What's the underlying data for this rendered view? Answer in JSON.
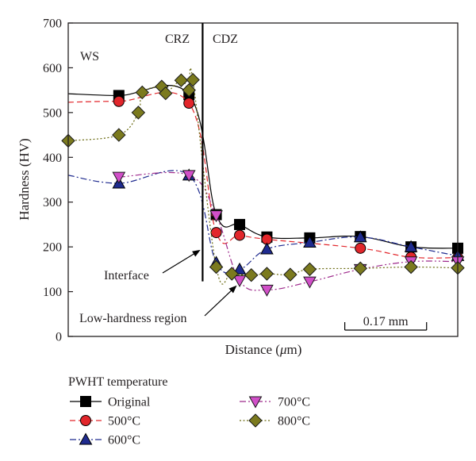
{
  "chart_data": {
    "type": "line",
    "xlabel_pre": "Distance (",
    "xlabel_mu": "μ",
    "xlabel_post": "m)",
    "ylabel": "Hardness (HV)",
    "ylim": [
      0,
      700
    ],
    "yticks": [
      0,
      100,
      200,
      300,
      400,
      500,
      600,
      700
    ],
    "xlim": [
      0,
      1
    ],
    "grid": false,
    "interface_x": 0.345,
    "region_labels": [
      "WS",
      "CRZ",
      "CDZ"
    ],
    "annotations": [
      {
        "text": "Interface",
        "target": [
          0.34,
          195
        ]
      },
      {
        "text": "Low-hardness region",
        "target": [
          0.44,
          115
        ]
      }
    ],
    "scale_bar": {
      "label": "0.17 mm",
      "x_start": 0.71,
      "x_end": 0.92
    },
    "legend_title": "PWHT temperature",
    "legend_position": "bottom",
    "series": [
      {
        "name": "Original",
        "color": "#000000",
        "marker": "square",
        "line": "solid",
        "fill": "#000000",
        "x": [
          0.0,
          0.13,
          0.31,
          0.38,
          0.44,
          0.51,
          0.62,
          0.75,
          0.88,
          1.0
        ],
        "y": [
          542,
          538,
          540,
          272,
          250,
          222,
          220,
          223,
          200,
          197
        ],
        "markers_at": [
          1,
          2,
          3,
          4,
          5,
          6,
          7,
          8,
          9
        ]
      },
      {
        "name": "500°C",
        "color": "#e2262b",
        "marker": "circle",
        "line": "dashed",
        "fill": "#e2262b",
        "x": [
          0.0,
          0.13,
          0.31,
          0.38,
          0.44,
          0.51,
          0.75,
          0.88,
          1.0
        ],
        "y": [
          523,
          525,
          521,
          232,
          226,
          217,
          197,
          177,
          176
        ],
        "markers_at": [
          1,
          2,
          3,
          4,
          5,
          6,
          7,
          8
        ]
      },
      {
        "name": "600°C",
        "color": "#1f2b8f",
        "marker": "triangle-up",
        "line": "dashdot",
        "fill": "#1f2b8f",
        "x": [
          0.0,
          0.13,
          0.31,
          0.38,
          0.44,
          0.51,
          0.62,
          0.75,
          0.88,
          1.0
        ],
        "y": [
          360,
          342,
          360,
          165,
          150,
          195,
          210,
          222,
          200,
          180
        ],
        "markers_at": [
          1,
          2,
          3,
          4,
          5,
          6,
          7,
          8,
          9
        ]
      },
      {
        "name": "700°C",
        "color": "#9e2a8c",
        "marker": "triangle-down",
        "line": "dashdotdot",
        "fill": "#d14fc8",
        "x": [
          0.13,
          0.31,
          0.38,
          0.44,
          0.51,
          0.62,
          0.75,
          0.88,
          1.0
        ],
        "y": [
          356,
          360,
          270,
          125,
          104,
          122,
          150,
          167,
          167
        ],
        "markers_at": [
          0,
          1,
          2,
          3,
          4,
          5,
          6,
          7,
          8
        ]
      },
      {
        "name": "800°C",
        "color": "#6b6b12",
        "marker": "diamond",
        "line": "dotted",
        "fill": "#7b7a1e",
        "x": [
          0.0,
          0.13,
          0.18,
          0.19,
          0.24,
          0.25,
          0.29,
          0.31,
          0.32,
          0.38,
          0.42,
          0.47,
          0.51,
          0.57,
          0.62,
          0.75,
          0.88,
          1.0
        ],
        "y": [
          437,
          450,
          500,
          545,
          558,
          543,
          572,
          550,
          573,
          155,
          140,
          137,
          140,
          138,
          150,
          152,
          155,
          153
        ],
        "markers_at": [
          0,
          1,
          2,
          3,
          4,
          5,
          6,
          7,
          8,
          9,
          10,
          11,
          12,
          13,
          14,
          15,
          16,
          17
        ]
      }
    ]
  }
}
